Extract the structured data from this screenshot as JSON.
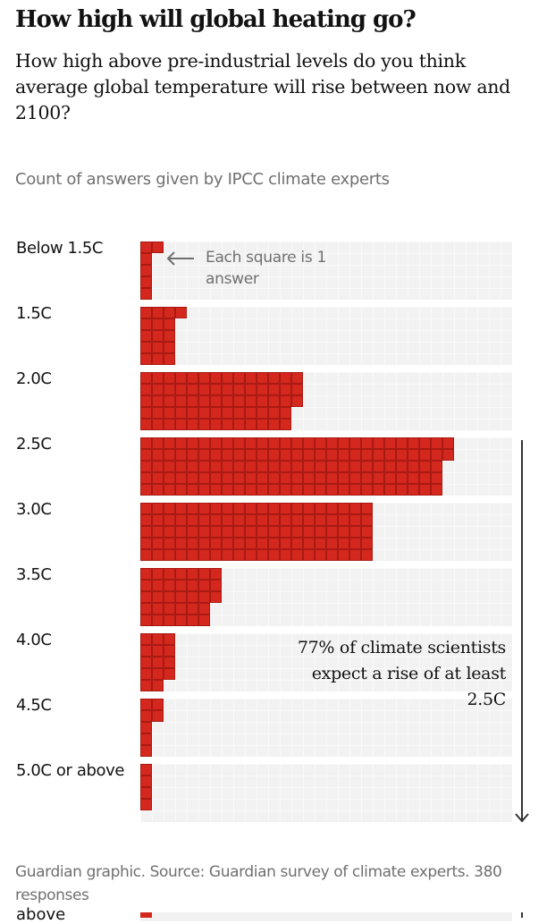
{
  "header": {
    "title": "How high will global heating go?",
    "subtitle": "How high above pre-industrial levels do you think average global temperature will rise between now and 2100?"
  },
  "chart_data": {
    "type": "bar",
    "subtype": "waffle",
    "title": "How high will global heating go?",
    "subtitle": "How high above pre-industrial levels do you think average global temperature will rise between now and 2100?",
    "ylabel": "Count of answers given by IPCC climate experts",
    "xlabel": "",
    "categories": [
      "Below 1.5C",
      "1.5C",
      "2.0C",
      "2.5C",
      "3.0C",
      "3.5C",
      "4.0C",
      "4.5C",
      "5.0C or above"
    ],
    "values": [
      6,
      16,
      68,
      132,
      100,
      33,
      14,
      7,
      4
    ],
    "squares_per_column": 5,
    "track_capacity_squares": 160,
    "units": "answers (each square is 1 answer)",
    "legend_note": "Each square is 1 answer",
    "annotation": {
      "text": "77% of climate scientists expect a rise of at least 2.5C",
      "range_from": "2.5C",
      "range_to": "5.0C or above"
    },
    "total_responses": 380,
    "colors": {
      "square": "#d4281e",
      "square_border": "#a81a12",
      "track": "#f2f2f2"
    },
    "grid": false
  },
  "labels": {
    "count_label": "Count of answers given by IPCC climate experts",
    "each_square_note": "Each square is 1 answer",
    "callout": "77% of climate scientists expect a rise of at least 2.5C",
    "source": "Guardian graphic. Source: Guardian survey of climate experts. 380 responses",
    "clipped_label": "above"
  }
}
